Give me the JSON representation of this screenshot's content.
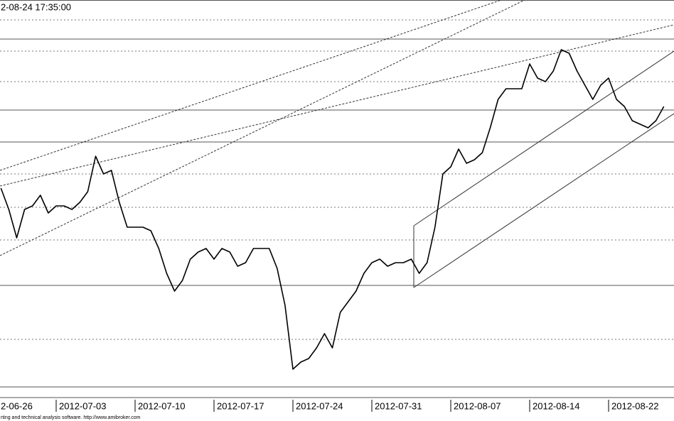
{
  "chart_data": {
    "type": "line",
    "title": "2-08-24 17:35:00",
    "footer": "rting and technical analysis software. http://www.amibroker.com",
    "categories": [
      "2-06-26",
      null,
      null,
      null,
      null,
      null,
      null,
      null,
      null,
      null,
      "2012-07-03",
      null,
      null,
      null,
      null,
      null,
      null,
      null,
      null,
      null,
      "2012-07-10",
      null,
      null,
      null,
      null,
      null,
      null,
      null,
      null,
      null,
      "2012-07-17",
      null,
      null,
      null,
      null,
      null,
      null,
      null,
      null,
      null,
      "2012-07-24",
      null,
      null,
      null,
      null,
      null,
      null,
      null,
      null,
      null,
      "2012-07-31",
      null,
      null,
      null,
      null,
      null,
      null,
      null,
      null,
      null,
      "2012-08-07",
      null,
      null,
      null,
      null,
      null,
      null,
      null,
      null,
      null,
      "2012-08-14",
      null,
      null,
      null,
      null,
      null,
      null,
      null,
      null,
      null,
      "2012-08-22",
      null,
      null,
      null,
      null,
      null,
      null,
      null
    ],
    "series": [
      {
        "color": "#000000",
        "values": [
          null,
          null,
          null,
          295,
          265,
          225,
          265,
          270,
          285,
          260,
          270,
          270,
          265,
          275,
          290,
          340,
          315,
          320,
          275,
          240,
          240,
          240,
          235,
          210,
          175,
          150,
          165,
          195,
          205,
          210,
          195,
          210,
          205,
          185,
          190,
          210,
          210,
          210,
          182,
          130,
          40,
          50,
          55,
          70,
          90,
          70,
          120,
          135,
          150,
          175,
          190,
          195,
          185,
          190,
          190,
          195,
          175,
          190,
          240,
          315,
          325,
          350,
          330,
          335,
          345,
          380,
          420,
          435,
          435,
          435,
          470,
          450,
          445,
          460,
          490,
          485,
          460,
          440,
          420,
          440,
          450,
          420,
          410,
          390,
          385,
          380,
          390,
          410
        ]
      }
    ],
    "ylim": [
      0,
      560
    ]
  }
}
